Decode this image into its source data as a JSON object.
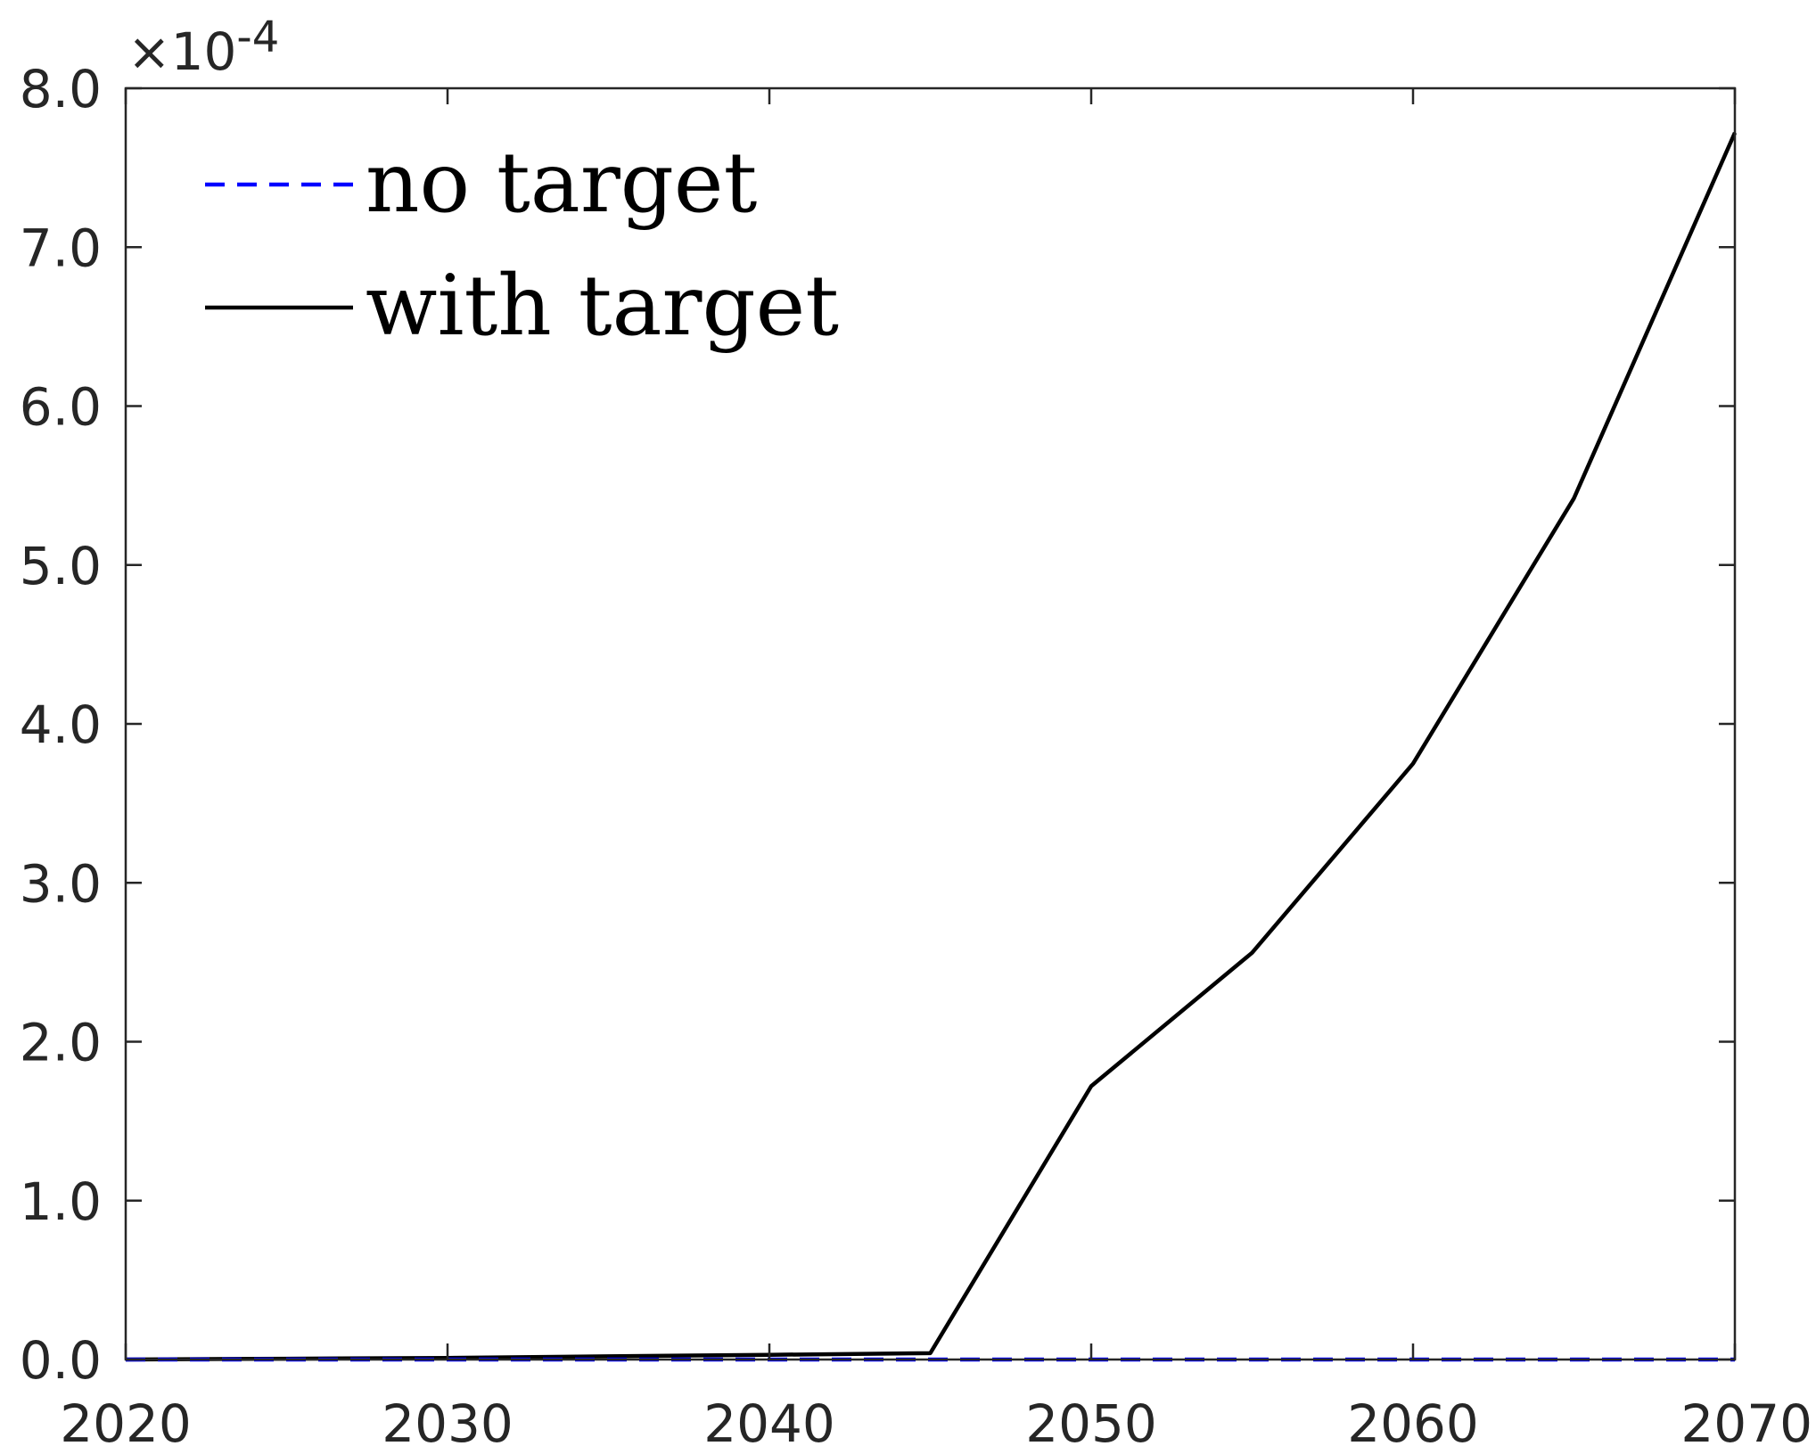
{
  "chart_data": {
    "type": "line",
    "title": "",
    "xlabel": "",
    "ylabel": "",
    "xlim": [
      2020,
      2070
    ],
    "ylim": [
      0,
      8
    ],
    "y_multiplier_label": {
      "prefix": "×10",
      "exponent": "-4"
    },
    "xticks": [
      2020,
      2030,
      2040,
      2050,
      2060,
      2070
    ],
    "xtick_labels": [
      "2020",
      "2030",
      "2040",
      "2050",
      "2060",
      "2070"
    ],
    "yticks": [
      0,
      1,
      2,
      3,
      4,
      5,
      6,
      7,
      8
    ],
    "ytick_labels": [
      "0.0",
      "1.0",
      "2.0",
      "3.0",
      "4.0",
      "5.0",
      "6.0",
      "7.0",
      "8.0"
    ],
    "grid": false,
    "legend_position": "top-left",
    "series": [
      {
        "name": "no target",
        "color": "#0000ff",
        "style": "dashed",
        "x": [
          2020,
          2025,
          2030,
          2035,
          2040,
          2045,
          2050,
          2055,
          2060,
          2065,
          2070
        ],
        "y": [
          0,
          0,
          0,
          0,
          0,
          0,
          0,
          0,
          0,
          0,
          0
        ]
      },
      {
        "name": "with target",
        "color": "#000000",
        "style": "solid",
        "x": [
          2020,
          2025,
          2030,
          2035,
          2040,
          2045,
          2050,
          2055,
          2060,
          2065,
          2070
        ],
        "y": [
          0,
          0.005,
          0.01,
          0.02,
          0.03,
          0.04,
          1.72,
          2.56,
          3.75,
          5.42,
          7.72
        ]
      }
    ]
  }
}
